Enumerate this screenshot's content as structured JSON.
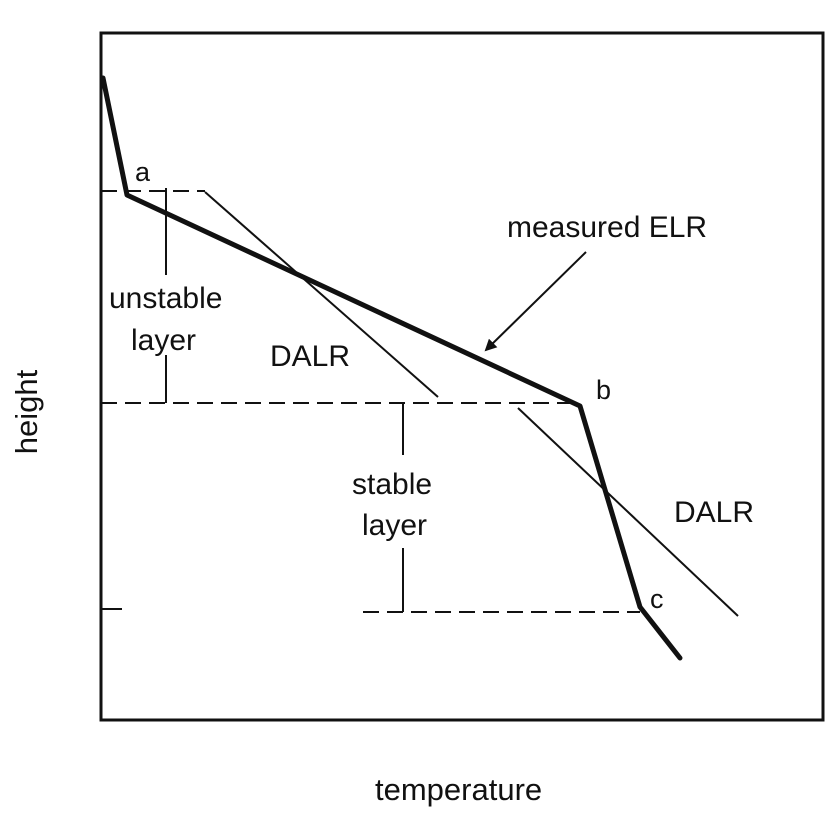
{
  "axes": {
    "xlabel": "temperature",
    "ylabel": "height"
  },
  "points": {
    "a": "a",
    "b": "b",
    "c": "c"
  },
  "labels": {
    "measured_elr": "measured ELR",
    "dalr_upper": "DALR",
    "dalr_lower": "DALR",
    "unstable_line1": "unstable",
    "unstable_line2": "layer",
    "stable_line1": "stable",
    "stable_line2": "layer"
  }
}
